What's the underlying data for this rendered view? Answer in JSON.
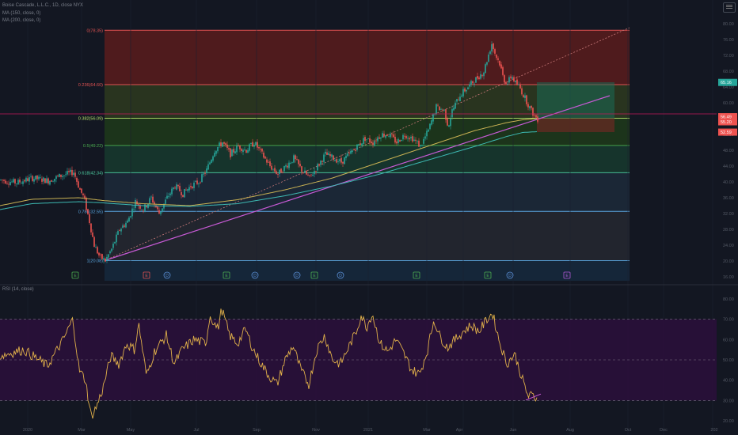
{
  "header": {
    "symbol_line": "Boise Cascade, L.L.C., 1D, close NYX",
    "ma1_line": "MA (150, close, 0)",
    "ma2_line": "MA (200, close, 0)",
    "rsi_line": "RSI (14, close)"
  },
  "colors": {
    "background": "#131722",
    "candle_up": "#26a69a",
    "candle_down": "#ef5350",
    "ma150": "#c8b153",
    "ma200": "#3db9b2",
    "trendline": "#c85ad6",
    "rsi_line": "#e0b04a",
    "rsi_band": "#2a0f3a",
    "crosshair": "#c2185b"
  },
  "fib_levels": [
    {
      "label": "0(78.35)",
      "price": 78.35,
      "color": "#e05252",
      "fill": "#5a1c1c"
    },
    {
      "label": "0.236(64.60)",
      "price": 64.6,
      "color": "#e05252",
      "fill": "#2e3a1e"
    },
    {
      "label": "0.382(56.09)",
      "price": 56.09,
      "color": "#b6e06b",
      "fill": "#1f3a1a"
    },
    {
      "label": "0.5(49.22)",
      "price": 49.22,
      "color": "#4caf50",
      "fill": "#173a2e"
    },
    {
      "label": "0.618(42.34)",
      "price": 42.34,
      "color": "#4dd0a3",
      "fill": "#1d2a3a"
    },
    {
      "label": "0.786(32.55)",
      "price": 32.55,
      "color": "#5aa6e0",
      "fill": "#262830"
    },
    {
      "label": "1(20.08)",
      "price": 20.08,
      "color": "#5aa6e0",
      "fill": "#162a40"
    }
  ],
  "price_scale": [
    "80.00",
    "76.00",
    "72.00",
    "68.00",
    "64.00",
    "60.00",
    "56.00",
    "52.00",
    "48.00",
    "44.00",
    "40.00",
    "36.00",
    "32.00",
    "28.00",
    "24.00",
    "20.00",
    "16.00"
  ],
  "price_badges": [
    {
      "text": "65.16",
      "color": "#26a69a",
      "price": 65.16
    },
    {
      "text": "56.49",
      "color": "#ef5350",
      "price": 56.49
    },
    {
      "text": "55.20",
      "color": "#ef5350",
      "price": 55.2
    },
    {
      "text": "52.59",
      "color": "#ef5350",
      "price": 52.59
    }
  ],
  "rsi_scale": [
    "80.00",
    "70.00",
    "60.00",
    "50.00",
    "40.00",
    "30.00",
    "20.00"
  ],
  "rsi_bands": [
    70,
    50,
    30
  ],
  "time_axis": [
    "2020",
    "Mar",
    "May",
    "Jul",
    "Sep",
    "Nov",
    "2021",
    "Mar",
    "Apr",
    "Jun",
    "Aug",
    "Oct",
    "Dec",
    "202"
  ],
  "events": [
    {
      "letter": "E",
      "kind": "earnings-up"
    },
    {
      "letter": "E",
      "kind": "earnings-down"
    },
    {
      "letter": "D",
      "kind": "dividend"
    },
    {
      "letter": "E",
      "kind": "earnings-up"
    },
    {
      "letter": "D",
      "kind": "dividend"
    },
    {
      "letter": "D",
      "kind": "dividend"
    },
    {
      "letter": "E",
      "kind": "earnings-up"
    },
    {
      "letter": "D",
      "kind": "dividend"
    },
    {
      "letter": "E",
      "kind": "earnings-up"
    },
    {
      "letter": "E",
      "kind": "earnings-up"
    },
    {
      "letter": "D",
      "kind": "dividend"
    },
    {
      "letter": "E",
      "kind": "earnings-future"
    }
  ],
  "chart_data": {
    "type": "line",
    "title": "Boise Cascade, L.L.C., 1D, close NYX",
    "ylim": [
      16,
      81
    ],
    "rsi_ylim": [
      15,
      85
    ],
    "price_anchors": [
      [
        0,
        40.5
      ],
      [
        20,
        39.8
      ],
      [
        40,
        41
      ],
      [
        60,
        40.3
      ],
      [
        75,
        41.5
      ],
      [
        92,
        42.5
      ],
      [
        100,
        38
      ],
      [
        105,
        36
      ],
      [
        112,
        30
      ],
      [
        118,
        24
      ],
      [
        125,
        21
      ],
      [
        132,
        20.1
      ],
      [
        140,
        23
      ],
      [
        150,
        28
      ],
      [
        160,
        30
      ],
      [
        170,
        35
      ],
      [
        180,
        33
      ],
      [
        190,
        36
      ],
      [
        200,
        32
      ],
      [
        210,
        36
      ],
      [
        220,
        39
      ],
      [
        230,
        37
      ],
      [
        240,
        39
      ],
      [
        250,
        40
      ],
      [
        260,
        43
      ],
      [
        270,
        48
      ],
      [
        280,
        50
      ],
      [
        290,
        47
      ],
      [
        300,
        49
      ],
      [
        310,
        48
      ],
      [
        320,
        50
      ],
      [
        330,
        47
      ],
      [
        340,
        44
      ],
      [
        350,
        42
      ],
      [
        360,
        44
      ],
      [
        370,
        46
      ],
      [
        380,
        43
      ],
      [
        390,
        41
      ],
      [
        400,
        44
      ],
      [
        410,
        47
      ],
      [
        420,
        46
      ],
      [
        430,
        45
      ],
      [
        440,
        47
      ],
      [
        450,
        49
      ],
      [
        460,
        51
      ],
      [
        470,
        50
      ],
      [
        480,
        52
      ],
      [
        490,
        52
      ],
      [
        500,
        50
      ],
      [
        510,
        52
      ],
      [
        520,
        51
      ],
      [
        530,
        49
      ],
      [
        540,
        53
      ],
      [
        545,
        56
      ],
      [
        550,
        59
      ],
      [
        560,
        58
      ],
      [
        565,
        54
      ],
      [
        570,
        58
      ],
      [
        580,
        62
      ],
      [
        590,
        64
      ],
      [
        600,
        66
      ],
      [
        610,
        68
      ],
      [
        620,
        75
      ],
      [
        625,
        72
      ],
      [
        630,
        70
      ],
      [
        635,
        66
      ],
      [
        640,
        65
      ],
      [
        645,
        67
      ],
      [
        650,
        65
      ],
      [
        655,
        64
      ],
      [
        660,
        62
      ],
      [
        665,
        60
      ],
      [
        670,
        58
      ],
      [
        675,
        56.5
      ],
      [
        678,
        56
      ]
    ],
    "ma150_anchors": [
      [
        0,
        34
      ],
      [
        40,
        35.6
      ],
      [
        100,
        36
      ],
      [
        130,
        35.3
      ],
      [
        180,
        34.5
      ],
      [
        240,
        34
      ],
      [
        300,
        35.5
      ],
      [
        360,
        38
      ],
      [
        420,
        41
      ],
      [
        480,
        45
      ],
      [
        540,
        49
      ],
      [
        600,
        53
      ],
      [
        640,
        55
      ],
      [
        660,
        55.7
      ],
      [
        678,
        56
      ]
    ],
    "ma200_anchors": [
      [
        0,
        33
      ],
      [
        40,
        34.5
      ],
      [
        100,
        35
      ],
      [
        130,
        34.7
      ],
      [
        180,
        34
      ],
      [
        240,
        33.8
      ],
      [
        300,
        34.5
      ],
      [
        360,
        36.5
      ],
      [
        420,
        39
      ],
      [
        480,
        42
      ],
      [
        540,
        45.5
      ],
      [
        600,
        49
      ],
      [
        640,
        51.5
      ],
      [
        660,
        52.5
      ],
      [
        678,
        52.7
      ]
    ],
    "rsi_anchors": [
      [
        0,
        52
      ],
      [
        30,
        55
      ],
      [
        60,
        47
      ],
      [
        80,
        60
      ],
      [
        92,
        70
      ],
      [
        100,
        45
      ],
      [
        108,
        40
      ],
      [
        115,
        22
      ],
      [
        122,
        27
      ],
      [
        130,
        36
      ],
      [
        140,
        52
      ],
      [
        150,
        48
      ],
      [
        160,
        58
      ],
      [
        170,
        55
      ],
      [
        175,
        68
      ],
      [
        185,
        42
      ],
      [
        195,
        54
      ],
      [
        210,
        62
      ],
      [
        220,
        48
      ],
      [
        230,
        55
      ],
      [
        245,
        60
      ],
      [
        260,
        58
      ],
      [
        265,
        72
      ],
      [
        275,
        65
      ],
      [
        280,
        75
      ],
      [
        290,
        62
      ],
      [
        300,
        58
      ],
      [
        310,
        65
      ],
      [
        320,
        55
      ],
      [
        330,
        48
      ],
      [
        340,
        42
      ],
      [
        350,
        38
      ],
      [
        360,
        50
      ],
      [
        370,
        57
      ],
      [
        380,
        45
      ],
      [
        390,
        38
      ],
      [
        400,
        55
      ],
      [
        410,
        62
      ],
      [
        420,
        50
      ],
      [
        430,
        48
      ],
      [
        440,
        56
      ],
      [
        450,
        64
      ],
      [
        456,
        72
      ],
      [
        463,
        66
      ],
      [
        470,
        73
      ],
      [
        480,
        58
      ],
      [
        490,
        54
      ],
      [
        500,
        60
      ],
      [
        510,
        53
      ],
      [
        520,
        45
      ],
      [
        530,
        43
      ],
      [
        540,
        55
      ],
      [
        548,
        70
      ],
      [
        555,
        62
      ],
      [
        565,
        56
      ],
      [
        575,
        60
      ],
      [
        585,
        64
      ],
      [
        595,
        67
      ],
      [
        605,
        64
      ],
      [
        615,
        70
      ],
      [
        622,
        73
      ],
      [
        630,
        60
      ],
      [
        640,
        48
      ],
      [
        650,
        53
      ],
      [
        660,
        40
      ],
      [
        667,
        32
      ],
      [
        672,
        32.5
      ],
      [
        678,
        31
      ]
    ],
    "indicators": [
      "MA 150",
      "MA 200",
      "RSI 14",
      "Fib retracement 20.08 - 78.35"
    ]
  }
}
